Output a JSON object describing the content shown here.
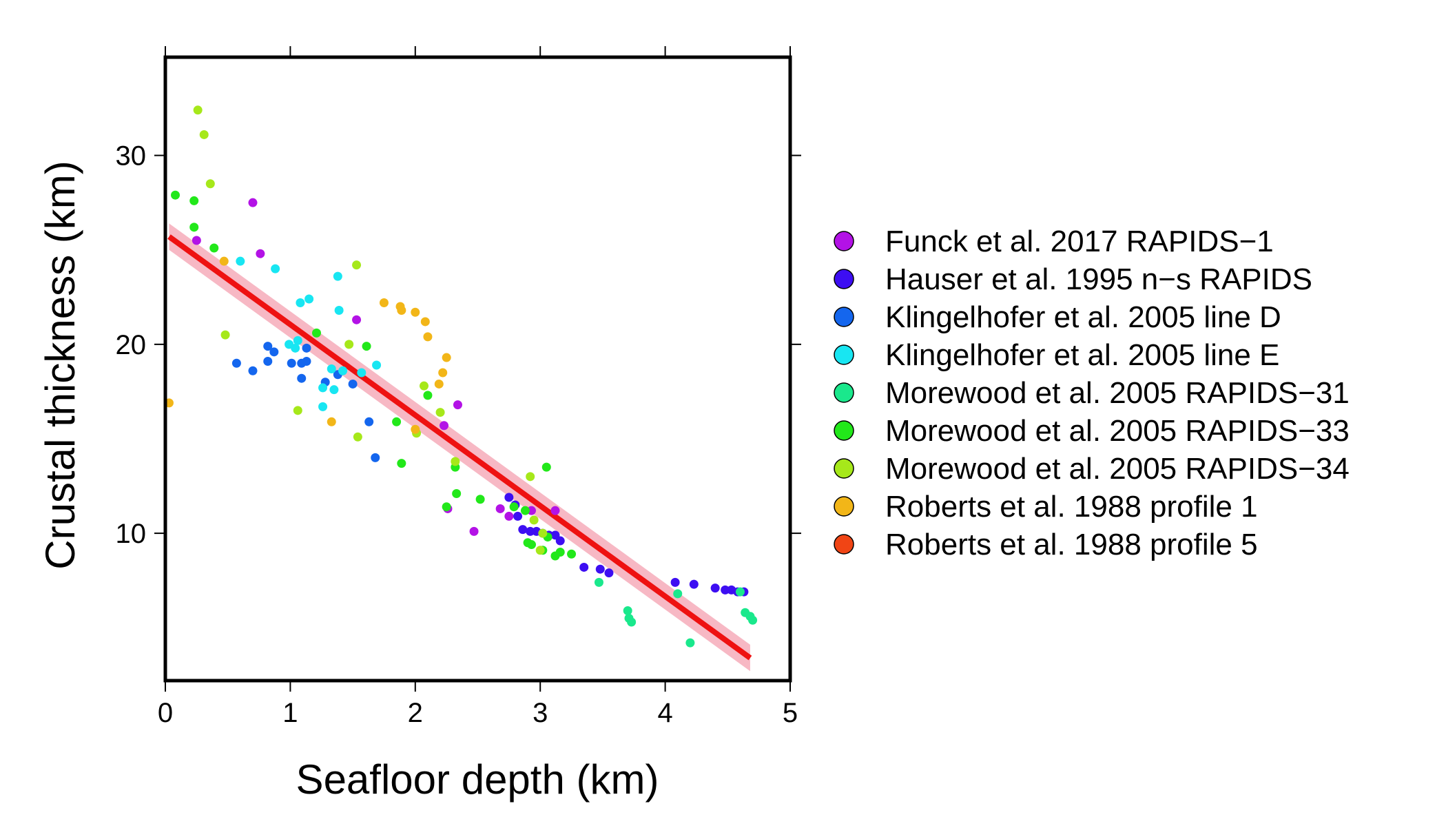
{
  "chart_data": {
    "type": "scatter",
    "title": "",
    "xlabel": "Seafloor depth (km)",
    "ylabel": "Crustal thickness (km)",
    "xlim": [
      0,
      5
    ],
    "ylim": [
      2.2,
      35.2
    ],
    "xticks": [
      "0",
      "1",
      "2",
      "3",
      "4",
      "5"
    ],
    "yticks": [
      "10",
      "20",
      "30"
    ],
    "grid": false,
    "legend_position": "right",
    "series": [
      {
        "name": "Funck et al. 2017 RAPIDS−1",
        "color": "#b312e6",
        "points": [
          [
            0.25,
            25.5
          ],
          [
            0.7,
            27.5
          ],
          [
            0.76,
            24.8
          ],
          [
            1.53,
            21.3
          ],
          [
            2.23,
            15.7
          ],
          [
            2.34,
            16.8
          ],
          [
            2.26,
            11.3
          ],
          [
            2.47,
            10.1
          ],
          [
            2.68,
            11.3
          ],
          [
            2.75,
            10.9
          ],
          [
            2.93,
            11.2
          ],
          [
            3.12,
            11.2
          ]
        ]
      },
      {
        "name": "Hauser et al. 1995 n−s RAPIDS",
        "color": "#3d0ef2",
        "points": [
          [
            2.75,
            11.9
          ],
          [
            2.8,
            11.5
          ],
          [
            2.82,
            10.9
          ],
          [
            2.86,
            10.2
          ],
          [
            2.92,
            10.1
          ],
          [
            2.97,
            10.1
          ],
          [
            3.02,
            10.0
          ],
          [
            3.07,
            9.9
          ],
          [
            3.12,
            9.9
          ],
          [
            3.16,
            9.6
          ],
          [
            3.35,
            8.2
          ],
          [
            3.48,
            8.1
          ],
          [
            3.55,
            7.9
          ],
          [
            4.08,
            7.4
          ],
          [
            4.23,
            7.3
          ],
          [
            4.4,
            7.1
          ],
          [
            4.48,
            7.0
          ],
          [
            4.53,
            7.0
          ],
          [
            4.58,
            6.9
          ],
          [
            4.63,
            6.9
          ]
        ]
      },
      {
        "name": "Klingelhofer et al. 2005 line D",
        "color": "#1466ee",
        "points": [
          [
            0.57,
            19.0
          ],
          [
            0.7,
            18.6
          ],
          [
            0.82,
            19.1
          ],
          [
            0.82,
            19.9
          ],
          [
            0.87,
            19.6
          ],
          [
            1.01,
            19.0
          ],
          [
            1.09,
            19.0
          ],
          [
            1.09,
            18.2
          ],
          [
            1.13,
            19.1
          ],
          [
            1.13,
            19.8
          ],
          [
            1.28,
            18.0
          ],
          [
            1.38,
            18.4
          ],
          [
            1.5,
            17.9
          ],
          [
            1.63,
            15.9
          ],
          [
            1.68,
            14.0
          ]
        ]
      },
      {
        "name": "Klingelhofer et al. 2005 line E",
        "color": "#18e6f2",
        "points": [
          [
            0.6,
            24.4
          ],
          [
            0.88,
            24.0
          ],
          [
            0.99,
            20.0
          ],
          [
            1.04,
            19.8
          ],
          [
            1.06,
            20.2
          ],
          [
            1.08,
            22.2
          ],
          [
            1.15,
            22.4
          ],
          [
            1.26,
            17.7
          ],
          [
            1.26,
            16.7
          ],
          [
            1.33,
            18.7
          ],
          [
            1.35,
            17.6
          ],
          [
            1.38,
            23.6
          ],
          [
            1.39,
            21.8
          ],
          [
            1.42,
            18.6
          ],
          [
            1.57,
            18.5
          ],
          [
            1.69,
            18.9
          ]
        ]
      },
      {
        "name": "Morewood et al. 2005 RAPIDS−31",
        "color": "#1ae88c",
        "points": [
          [
            3.47,
            7.4
          ],
          [
            3.7,
            5.9
          ],
          [
            3.71,
            5.5
          ],
          [
            3.73,
            5.3
          ],
          [
            4.1,
            6.8
          ],
          [
            4.2,
            4.2
          ],
          [
            4.6,
            6.9
          ],
          [
            4.64,
            5.8
          ],
          [
            4.68,
            5.6
          ],
          [
            4.7,
            5.4
          ]
        ]
      },
      {
        "name": "Morewood et al. 2005 RAPIDS−33",
        "color": "#22e81a",
        "points": [
          [
            0.08,
            27.9
          ],
          [
            0.23,
            27.6
          ],
          [
            0.23,
            26.2
          ],
          [
            0.39,
            25.1
          ],
          [
            1.21,
            20.6
          ],
          [
            1.61,
            19.9
          ],
          [
            1.85,
            15.9
          ],
          [
            1.89,
            13.7
          ],
          [
            2.1,
            17.3
          ],
          [
            2.25,
            11.4
          ],
          [
            2.32,
            13.5
          ],
          [
            2.33,
            12.1
          ],
          [
            2.52,
            11.8
          ],
          [
            2.79,
            11.4
          ],
          [
            2.88,
            11.2
          ],
          [
            2.9,
            9.5
          ],
          [
            2.93,
            9.4
          ],
          [
            3.02,
            9.1
          ],
          [
            3.05,
            13.5
          ],
          [
            3.06,
            9.8
          ],
          [
            3.12,
            8.8
          ],
          [
            3.16,
            9.0
          ],
          [
            3.25,
            8.9
          ]
        ]
      },
      {
        "name": "Morewood et al. 2005 RAPIDS−34",
        "color": "#a6e81a",
        "points": [
          [
            0.26,
            32.4
          ],
          [
            0.31,
            31.1
          ],
          [
            0.36,
            28.5
          ],
          [
            0.48,
            20.5
          ],
          [
            1.06,
            16.5
          ],
          [
            1.47,
            20.0
          ],
          [
            1.53,
            24.2
          ],
          [
            1.54,
            15.1
          ],
          [
            2.01,
            15.3
          ],
          [
            2.07,
            17.8
          ],
          [
            2.2,
            16.4
          ],
          [
            2.32,
            13.8
          ],
          [
            2.92,
            13.0
          ],
          [
            2.95,
            10.7
          ],
          [
            3.0,
            9.1
          ],
          [
            3.02,
            10.0
          ]
        ]
      },
      {
        "name": "Roberts et al. 1988 profile 1",
        "color": "#f2b618",
        "points": [
          [
            0.03,
            16.9
          ],
          [
            0.47,
            24.4
          ],
          [
            1.33,
            15.9
          ],
          [
            1.75,
            22.2
          ],
          [
            1.88,
            22.0
          ],
          [
            1.89,
            21.8
          ],
          [
            2.0,
            21.7
          ],
          [
            2.08,
            21.2
          ],
          [
            2.1,
            20.4
          ],
          [
            2.0,
            15.5
          ],
          [
            2.19,
            17.9
          ],
          [
            2.22,
            18.5
          ],
          [
            2.25,
            19.3
          ]
        ]
      },
      {
        "name": "Roberts et al. 1988 profile 5",
        "color": "#f04515",
        "points": []
      }
    ],
    "fit_line": {
      "color": "#ee1111",
      "band_color": "#f7b8c4",
      "points": [
        [
          0.03,
          25.7
        ],
        [
          4.68,
          3.4
        ]
      ],
      "band_halfwidth": 0.7
    }
  }
}
